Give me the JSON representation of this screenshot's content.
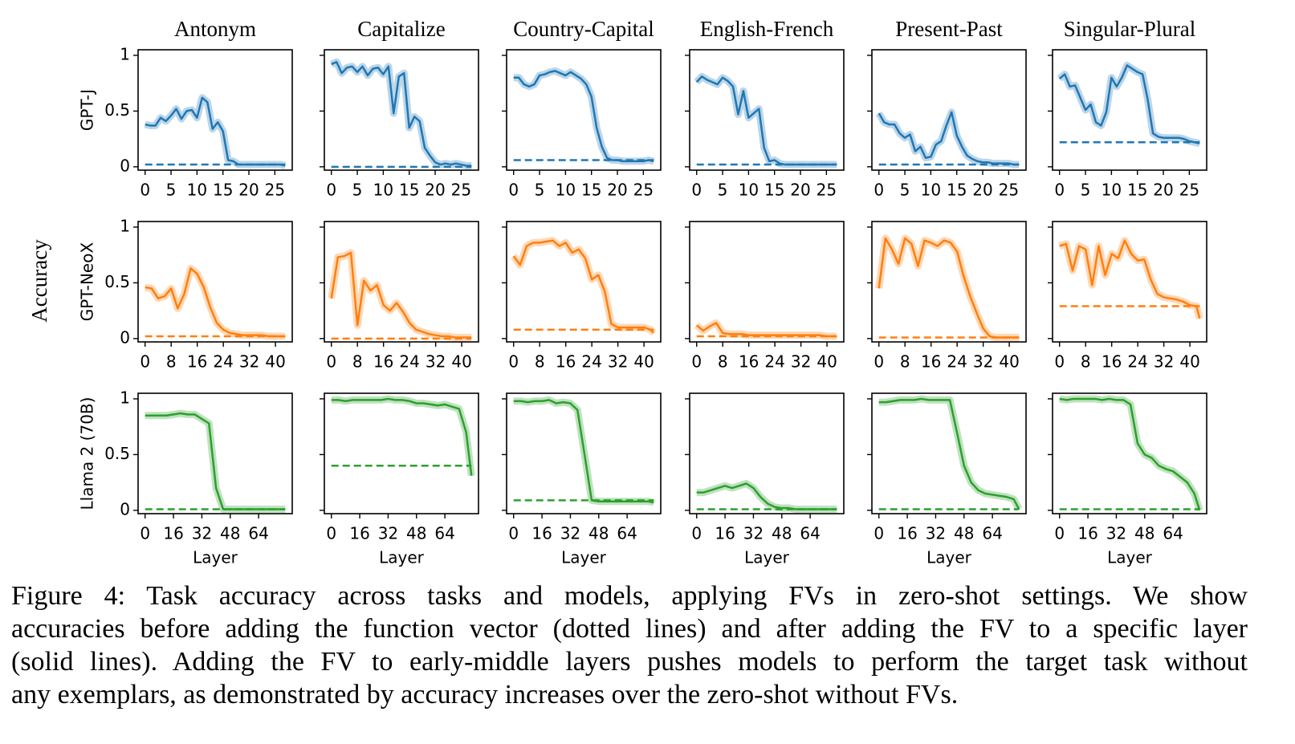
{
  "ylabel": "Accuracy",
  "caption": [
    "Figure 4: Task accuracy across tasks and models, applying FVs in zero-shot settings. We show",
    "accuracies before adding the function vector (dotted lines) and after adding the FV to a specific layer",
    "(solid lines). Adding the FV to early-middle layers pushes models to perform the target task without",
    "any exemplars, as demonstrated by accuracy increases over the zero-shot without FVs."
  ],
  "chart_data": [
    {
      "type": "line",
      "title": "Antonym",
      "ylabel": "GPT-J",
      "color": "#1f77b4",
      "show_ytick_labels": true,
      "xlim": [
        -1.35,
        28.35
      ],
      "xticks": [
        0,
        5,
        10,
        15,
        20,
        25
      ],
      "ylim": [
        -0.03,
        1.05
      ],
      "yticks": [
        0,
        0.5,
        1
      ],
      "x": [
        0,
        1,
        2,
        3,
        4,
        5,
        6,
        7,
        8,
        9,
        10,
        11,
        12,
        13,
        14,
        15,
        16,
        17,
        18,
        19,
        20,
        21,
        22,
        23,
        24,
        25,
        26,
        27
      ],
      "values": [
        0.38,
        0.37,
        0.37,
        0.44,
        0.41,
        0.46,
        0.52,
        0.43,
        0.5,
        0.51,
        0.44,
        0.62,
        0.58,
        0.34,
        0.4,
        0.32,
        0.06,
        0.05,
        0.02,
        0.02,
        0.02,
        0.02,
        0.02,
        0.02,
        0.02,
        0.02,
        0.02,
        0.01
      ],
      "baseline": 0.02
    },
    {
      "type": "line",
      "title": "Capitalize",
      "color": "#1f77b4",
      "show_ytick_labels": false,
      "xlim": [
        -1.35,
        28.35
      ],
      "xticks": [
        0,
        5,
        10,
        15,
        20,
        25
      ],
      "ylim": [
        -0.03,
        1.05
      ],
      "yticks": [
        0,
        0.5,
        1
      ],
      "x": [
        0,
        1,
        2,
        3,
        4,
        5,
        6,
        7,
        8,
        9,
        10,
        11,
        12,
        13,
        14,
        15,
        16,
        17,
        18,
        19,
        20,
        21,
        22,
        23,
        24,
        25,
        26,
        27
      ],
      "values": [
        0.92,
        0.94,
        0.84,
        0.89,
        0.9,
        0.85,
        0.9,
        0.82,
        0.88,
        0.89,
        0.83,
        0.9,
        0.48,
        0.81,
        0.84,
        0.35,
        0.45,
        0.41,
        0.17,
        0.1,
        0.04,
        0.02,
        0.03,
        0.02,
        0.03,
        0.02,
        0.01,
        0.01
      ],
      "baseline": 0.0
    },
    {
      "type": "line",
      "title": "Country-Capital",
      "color": "#1f77b4",
      "show_ytick_labels": false,
      "xlim": [
        -1.35,
        28.35
      ],
      "xticks": [
        0,
        5,
        10,
        15,
        20,
        25
      ],
      "ylim": [
        -0.03,
        1.05
      ],
      "yticks": [
        0,
        0.5,
        1
      ],
      "x": [
        0,
        1,
        2,
        3,
        4,
        5,
        6,
        7,
        8,
        9,
        10,
        11,
        12,
        13,
        14,
        15,
        16,
        17,
        18,
        19,
        20,
        21,
        22,
        23,
        24,
        25,
        26,
        27
      ],
      "values": [
        0.8,
        0.8,
        0.74,
        0.72,
        0.74,
        0.82,
        0.83,
        0.85,
        0.86,
        0.84,
        0.82,
        0.85,
        0.82,
        0.79,
        0.74,
        0.63,
        0.35,
        0.18,
        0.08,
        0.06,
        0.06,
        0.05,
        0.05,
        0.05,
        0.05,
        0.05,
        0.06,
        0.05
      ],
      "baseline": 0.06
    },
    {
      "type": "line",
      "title": "English-French",
      "color": "#1f77b4",
      "show_ytick_labels": false,
      "xlim": [
        -1.35,
        28.35
      ],
      "xticks": [
        0,
        5,
        10,
        15,
        20,
        25
      ],
      "ylim": [
        -0.03,
        1.05
      ],
      "yticks": [
        0,
        0.5,
        1
      ],
      "x": [
        0,
        1,
        2,
        3,
        4,
        5,
        6,
        7,
        8,
        9,
        10,
        11,
        12,
        13,
        14,
        15,
        16,
        17,
        18,
        19,
        20,
        21,
        22,
        23,
        24,
        25,
        26,
        27
      ],
      "values": [
        0.76,
        0.81,
        0.78,
        0.76,
        0.74,
        0.8,
        0.77,
        0.72,
        0.47,
        0.68,
        0.44,
        0.48,
        0.52,
        0.17,
        0.05,
        0.06,
        0.03,
        0.02,
        0.02,
        0.02,
        0.02,
        0.02,
        0.02,
        0.02,
        0.02,
        0.02,
        0.02,
        0.02
      ],
      "baseline": 0.02
    },
    {
      "type": "line",
      "title": "Present-Past",
      "color": "#1f77b4",
      "show_ytick_labels": false,
      "xlim": [
        -1.35,
        28.35
      ],
      "xticks": [
        0,
        5,
        10,
        15,
        20,
        25
      ],
      "ylim": [
        -0.03,
        1.05
      ],
      "yticks": [
        0,
        0.5,
        1
      ],
      "x": [
        0,
        1,
        2,
        3,
        4,
        5,
        6,
        7,
        8,
        9,
        10,
        11,
        12,
        13,
        14,
        15,
        16,
        17,
        18,
        19,
        20,
        21,
        22,
        23,
        24,
        25,
        26,
        27
      ],
      "values": [
        0.48,
        0.4,
        0.38,
        0.38,
        0.3,
        0.26,
        0.29,
        0.14,
        0.18,
        0.08,
        0.09,
        0.2,
        0.23,
        0.37,
        0.49,
        0.28,
        0.18,
        0.1,
        0.07,
        0.05,
        0.04,
        0.04,
        0.03,
        0.03,
        0.03,
        0.03,
        0.02,
        0.02
      ],
      "baseline": 0.02
    },
    {
      "type": "line",
      "title": "Singular-Plural",
      "color": "#1f77b4",
      "show_ytick_labels": false,
      "xlim": [
        -1.35,
        28.35
      ],
      "xticks": [
        0,
        5,
        10,
        15,
        20,
        25
      ],
      "ylim": [
        -0.03,
        1.05
      ],
      "yticks": [
        0,
        0.5,
        1
      ],
      "x": [
        0,
        1,
        2,
        3,
        4,
        5,
        6,
        7,
        8,
        9,
        10,
        11,
        12,
        13,
        14,
        15,
        16,
        17,
        18,
        19,
        20,
        21,
        22,
        23,
        24,
        25,
        26,
        27
      ],
      "values": [
        0.79,
        0.83,
        0.72,
        0.73,
        0.62,
        0.51,
        0.56,
        0.4,
        0.37,
        0.49,
        0.8,
        0.72,
        0.8,
        0.91,
        0.88,
        0.85,
        0.83,
        0.6,
        0.3,
        0.27,
        0.26,
        0.26,
        0.26,
        0.26,
        0.25,
        0.23,
        0.22,
        0.21
      ],
      "baseline": 0.22
    },
    {
      "type": "line",
      "ylabel": "GPT-NeoX",
      "color": "#ff7f0e",
      "show_ytick_labels": true,
      "xlim": [
        -2.15,
        45.15
      ],
      "xticks": [
        0,
        8,
        16,
        24,
        32,
        40
      ],
      "ylim": [
        -0.03,
        1.05
      ],
      "yticks": [
        0,
        0.5,
        1
      ],
      "x": [
        0,
        2,
        4,
        6,
        8,
        10,
        12,
        14,
        16,
        18,
        20,
        22,
        24,
        26,
        28,
        30,
        32,
        34,
        36,
        38,
        40,
        42,
        43
      ],
      "values": [
        0.46,
        0.45,
        0.36,
        0.38,
        0.45,
        0.27,
        0.4,
        0.63,
        0.58,
        0.46,
        0.28,
        0.14,
        0.08,
        0.05,
        0.04,
        0.03,
        0.03,
        0.03,
        0.03,
        0.02,
        0.02,
        0.02,
        0.02
      ],
      "baseline": 0.02
    },
    {
      "type": "line",
      "color": "#ff7f0e",
      "show_ytick_labels": false,
      "xlim": [
        -2.15,
        45.15
      ],
      "xticks": [
        0,
        8,
        16,
        24,
        32,
        40
      ],
      "ylim": [
        -0.03,
        1.05
      ],
      "yticks": [
        0,
        0.5,
        1
      ],
      "x": [
        0,
        2,
        4,
        6,
        8,
        10,
        12,
        14,
        16,
        18,
        20,
        22,
        24,
        26,
        28,
        30,
        32,
        34,
        36,
        38,
        40,
        42,
        43
      ],
      "values": [
        0.36,
        0.73,
        0.74,
        0.77,
        0.12,
        0.52,
        0.43,
        0.48,
        0.3,
        0.25,
        0.32,
        0.24,
        0.14,
        0.08,
        0.06,
        0.04,
        0.03,
        0.02,
        0.02,
        0.01,
        0.01,
        0.01,
        0.01
      ],
      "baseline": 0.0
    },
    {
      "type": "line",
      "color": "#ff7f0e",
      "show_ytick_labels": false,
      "xlim": [
        -2.15,
        45.15
      ],
      "xticks": [
        0,
        8,
        16,
        24,
        32,
        40
      ],
      "ylim": [
        -0.03,
        1.05
      ],
      "yticks": [
        0,
        0.5,
        1
      ],
      "x": [
        0,
        2,
        4,
        6,
        8,
        10,
        12,
        14,
        16,
        18,
        20,
        22,
        24,
        26,
        28,
        30,
        32,
        34,
        36,
        38,
        40,
        42,
        43
      ],
      "values": [
        0.74,
        0.66,
        0.83,
        0.86,
        0.86,
        0.87,
        0.88,
        0.83,
        0.86,
        0.77,
        0.8,
        0.72,
        0.53,
        0.57,
        0.42,
        0.13,
        0.1,
        0.1,
        0.1,
        0.1,
        0.1,
        0.08,
        0.05
      ],
      "baseline": 0.08
    },
    {
      "type": "line",
      "color": "#ff7f0e",
      "show_ytick_labels": false,
      "xlim": [
        -2.15,
        45.15
      ],
      "xticks": [
        0,
        8,
        16,
        24,
        32,
        40
      ],
      "ylim": [
        -0.03,
        1.05
      ],
      "yticks": [
        0,
        0.5,
        1
      ],
      "x": [
        0,
        2,
        4,
        6,
        8,
        10,
        12,
        14,
        16,
        18,
        20,
        22,
        24,
        26,
        28,
        30,
        32,
        34,
        36,
        38,
        40,
        42,
        43
      ],
      "values": [
        0.12,
        0.07,
        0.11,
        0.14,
        0.05,
        0.04,
        0.04,
        0.04,
        0.03,
        0.03,
        0.03,
        0.03,
        0.03,
        0.03,
        0.03,
        0.03,
        0.03,
        0.03,
        0.03,
        0.03,
        0.02,
        0.02,
        0.02
      ],
      "baseline": 0.02
    },
    {
      "type": "line",
      "color": "#ff7f0e",
      "show_ytick_labels": false,
      "xlim": [
        -2.15,
        45.15
      ],
      "xticks": [
        0,
        8,
        16,
        24,
        32,
        40
      ],
      "ylim": [
        -0.03,
        1.05
      ],
      "yticks": [
        0,
        0.5,
        1
      ],
      "x": [
        0,
        2,
        4,
        6,
        8,
        10,
        12,
        14,
        16,
        18,
        20,
        22,
        24,
        26,
        28,
        30,
        32,
        34,
        36,
        38,
        40,
        42,
        43
      ],
      "values": [
        0.45,
        0.9,
        0.8,
        0.67,
        0.9,
        0.85,
        0.65,
        0.88,
        0.86,
        0.83,
        0.88,
        0.86,
        0.78,
        0.56,
        0.38,
        0.23,
        0.09,
        0.02,
        0.01,
        0.01,
        0.01,
        0.01,
        0.01
      ],
      "baseline": 0.01
    },
    {
      "type": "line",
      "color": "#ff7f0e",
      "show_ytick_labels": false,
      "xlim": [
        -2.15,
        45.15
      ],
      "xticks": [
        0,
        8,
        16,
        24,
        32,
        40
      ],
      "ylim": [
        -0.03,
        1.05
      ],
      "yticks": [
        0,
        0.5,
        1
      ],
      "x": [
        0,
        2,
        4,
        6,
        8,
        10,
        12,
        14,
        16,
        18,
        20,
        22,
        24,
        26,
        28,
        30,
        32,
        34,
        36,
        38,
        40,
        42,
        43
      ],
      "values": [
        0.83,
        0.85,
        0.61,
        0.83,
        0.8,
        0.48,
        0.83,
        0.57,
        0.76,
        0.72,
        0.88,
        0.76,
        0.7,
        0.71,
        0.53,
        0.4,
        0.37,
        0.36,
        0.35,
        0.33,
        0.3,
        0.29,
        0.18
      ],
      "baseline": 0.29
    },
    {
      "type": "line",
      "ylabel": "Llama 2 (70B)",
      "xlabel": "Layer",
      "color": "#2ca02c",
      "show_ytick_labels": true,
      "xlim": [
        -3.95,
        82.95
      ],
      "xticks": [
        0,
        16,
        32,
        48,
        64
      ],
      "ylim": [
        -0.03,
        1.05
      ],
      "yticks": [
        0,
        0.5,
        1
      ],
      "x": [
        0,
        4,
        8,
        12,
        16,
        20,
        24,
        28,
        32,
        36,
        40,
        44,
        48,
        52,
        56,
        60,
        64,
        68,
        72,
        76,
        79
      ],
      "values": [
        0.85,
        0.85,
        0.85,
        0.85,
        0.86,
        0.87,
        0.86,
        0.86,
        0.82,
        0.78,
        0.2,
        0.01,
        0.01,
        0.01,
        0.01,
        0.01,
        0.01,
        0.01,
        0.01,
        0.01,
        0.01
      ],
      "baseline": 0.01
    },
    {
      "type": "line",
      "xlabel": "Layer",
      "color": "#2ca02c",
      "show_ytick_labels": false,
      "xlim": [
        -3.95,
        82.95
      ],
      "xticks": [
        0,
        16,
        32,
        48,
        64
      ],
      "ylim": [
        -0.03,
        1.05
      ],
      "yticks": [
        0,
        0.5,
        1
      ],
      "x": [
        0,
        4,
        8,
        12,
        16,
        20,
        24,
        28,
        32,
        36,
        40,
        44,
        48,
        52,
        56,
        60,
        64,
        68,
        72,
        76,
        79
      ],
      "values": [
        0.99,
        0.99,
        0.98,
        0.99,
        0.99,
        0.99,
        0.99,
        0.99,
        1.0,
        0.99,
        0.99,
        0.98,
        0.96,
        0.96,
        0.95,
        0.94,
        0.95,
        0.93,
        0.91,
        0.7,
        0.31
      ],
      "baseline": 0.4
    },
    {
      "type": "line",
      "xlabel": "Layer",
      "color": "#2ca02c",
      "show_ytick_labels": false,
      "xlim": [
        -3.95,
        82.95
      ],
      "xticks": [
        0,
        16,
        32,
        48,
        64
      ],
      "ylim": [
        -0.03,
        1.05
      ],
      "yticks": [
        0,
        0.5,
        1
      ],
      "x": [
        0,
        4,
        8,
        12,
        16,
        20,
        24,
        28,
        32,
        36,
        40,
        44,
        48,
        52,
        56,
        60,
        64,
        68,
        72,
        76,
        79
      ],
      "values": [
        0.98,
        0.98,
        0.97,
        0.98,
        0.98,
        0.99,
        0.96,
        0.97,
        0.96,
        0.9,
        0.5,
        0.09,
        0.08,
        0.08,
        0.08,
        0.08,
        0.08,
        0.08,
        0.08,
        0.08,
        0.07
      ],
      "baseline": 0.09
    },
    {
      "type": "line",
      "xlabel": "Layer",
      "color": "#2ca02c",
      "show_ytick_labels": false,
      "xlim": [
        -3.95,
        82.95
      ],
      "xticks": [
        0,
        16,
        32,
        48,
        64
      ],
      "ylim": [
        -0.03,
        1.05
      ],
      "yticks": [
        0,
        0.5,
        1
      ],
      "x": [
        0,
        4,
        8,
        12,
        16,
        20,
        24,
        28,
        32,
        36,
        40,
        44,
        48,
        52,
        56,
        60,
        64,
        68,
        72,
        76,
        79
      ],
      "values": [
        0.16,
        0.16,
        0.18,
        0.2,
        0.22,
        0.2,
        0.22,
        0.24,
        0.2,
        0.12,
        0.06,
        0.03,
        0.02,
        0.02,
        0.01,
        0.01,
        0.01,
        0.01,
        0.01,
        0.01,
        0.01
      ],
      "baseline": 0.01
    },
    {
      "type": "line",
      "xlabel": "Layer",
      "color": "#2ca02c",
      "show_ytick_labels": false,
      "xlim": [
        -3.95,
        82.95
      ],
      "xticks": [
        0,
        16,
        32,
        48,
        64
      ],
      "ylim": [
        -0.03,
        1.05
      ],
      "yticks": [
        0,
        0.5,
        1
      ],
      "x": [
        0,
        4,
        8,
        12,
        16,
        20,
        24,
        28,
        32,
        36,
        40,
        44,
        48,
        52,
        56,
        60,
        64,
        68,
        72,
        76,
        79
      ],
      "values": [
        0.97,
        0.97,
        0.98,
        0.99,
        0.99,
        0.99,
        1.0,
        0.99,
        0.99,
        0.99,
        0.99,
        0.7,
        0.4,
        0.25,
        0.18,
        0.15,
        0.14,
        0.13,
        0.12,
        0.1,
        0.01
      ],
      "baseline": 0.01
    },
    {
      "type": "line",
      "xlabel": "Layer",
      "color": "#2ca02c",
      "show_ytick_labels": false,
      "xlim": [
        -3.95,
        82.95
      ],
      "xticks": [
        0,
        16,
        32,
        48,
        64
      ],
      "ylim": [
        -0.03,
        1.05
      ],
      "yticks": [
        0,
        0.5,
        1
      ],
      "x": [
        0,
        4,
        8,
        12,
        16,
        20,
        24,
        28,
        32,
        36,
        40,
        44,
        48,
        52,
        56,
        60,
        64,
        68,
        72,
        76,
        79
      ],
      "values": [
        1.0,
        0.99,
        1.0,
        1.0,
        1.0,
        1.0,
        0.99,
        1.0,
        0.99,
        0.99,
        0.95,
        0.6,
        0.5,
        0.47,
        0.4,
        0.37,
        0.35,
        0.3,
        0.25,
        0.15,
        0.0
      ],
      "baseline": 0.01
    }
  ]
}
